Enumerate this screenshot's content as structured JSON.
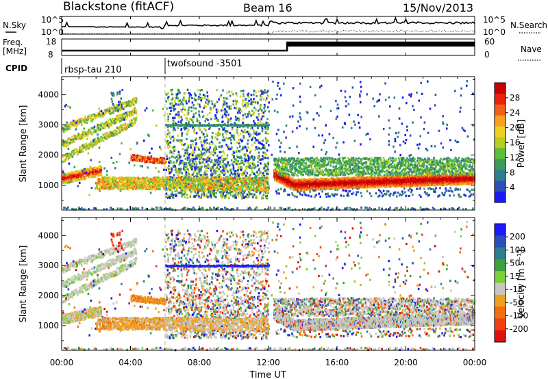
{
  "header": {
    "station": "Blackstone (fitACF)",
    "beam": "Beam 16",
    "date": "15/Nov/2013"
  },
  "top_panel": {
    "left_label": "N.Sky",
    "right_label": "N.Search",
    "left_ticks": [
      "10^5",
      "10^0"
    ],
    "right_ticks": [
      "10^5",
      "10^0"
    ]
  },
  "freq_panel": {
    "left_label_1": "Freq.",
    "left_label_2": "[MHz]",
    "right_label": "Nave",
    "left_ticks": [
      "18",
      "8"
    ],
    "right_ticks": [
      "60",
      "0"
    ]
  },
  "cpid": {
    "label": "CPID",
    "modes": [
      {
        "name": "rbsp-tau 210",
        "start_hour": 0
      },
      {
        "name": "twofsound -3501",
        "start_hour": 6
      }
    ]
  },
  "chart_data": [
    {
      "type": "heatmap",
      "panel": "power",
      "ylabel": "Slant Range [km]",
      "xlabel": "Time UT",
      "xlim_hours": [
        0,
        24
      ],
      "ylim_km": [
        180,
        4600
      ],
      "x_tick_labels": [
        "00:00",
        "04:00",
        "08:00",
        "12:00",
        "16:00",
        "20:00",
        "00:00"
      ],
      "x_tick_hours": [
        0,
        4,
        8,
        12,
        16,
        20,
        24
      ],
      "y_tick_values": [
        1000,
        2000,
        3000,
        4000
      ],
      "colorbar": {
        "label": "Power [dB]",
        "ticks": [
          "4",
          "8",
          "12",
          "16",
          "20",
          "24",
          "28"
        ],
        "tick_values": [
          4,
          8,
          12,
          16,
          20,
          24,
          28
        ],
        "range": [
          0,
          32
        ],
        "colors": [
          "#1a1aff",
          "#2a4fb8",
          "#2e7d8c",
          "#3a9a5a",
          "#5bbf3a",
          "#b8cc22",
          "#f0d020",
          "#f7a020",
          "#f26018",
          "#e82010",
          "#c80000"
        ]
      }
    },
    {
      "type": "heatmap",
      "panel": "velocity",
      "ylabel": "Slant Range [km]",
      "xlabel": "Time UT",
      "xlim_hours": [
        0,
        24
      ],
      "ylim_km": [
        180,
        4600
      ],
      "x_tick_labels": [
        "00:00",
        "04:00",
        "08:00",
        "12:00",
        "16:00",
        "20:00",
        "00:00"
      ],
      "x_tick_hours": [
        0,
        4,
        8,
        12,
        16,
        20,
        24
      ],
      "y_tick_values": [
        1000,
        2000,
        3000,
        4000
      ],
      "colorbar": {
        "label": "Velocity [m s⁻¹]",
        "ticks": [
          "200",
          "100",
          "50",
          "15",
          "-15",
          "-50",
          "-100",
          "-200"
        ],
        "colors": [
          "#1a1aff",
          "#2a4fb8",
          "#2e7d8c",
          "#3aa040",
          "#7ccf3a",
          "#c8c8c0",
          "#f0a020",
          "#f07010",
          "#f04010",
          "#e01010"
        ]
      }
    }
  ],
  "xlabel": "Time UT"
}
